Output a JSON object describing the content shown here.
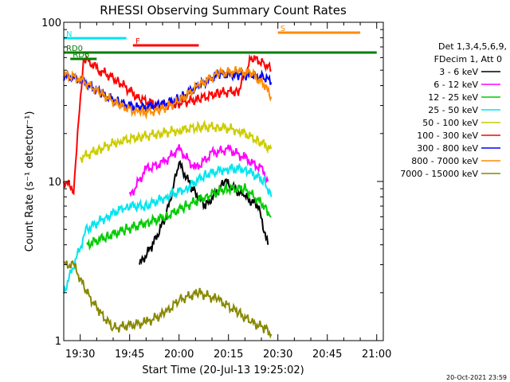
{
  "chart_data": {
    "type": "line",
    "title": "RHESSI Observing Summary Count Rates",
    "xlabel": "Start Time (20-Jul-13 19:25:02)",
    "ylabel": "Count Rate (s⁻¹ detector⁻¹)",
    "yscale": "log",
    "ylim": [
      1,
      100
    ],
    "xlim": [
      "19:25",
      "21:02"
    ],
    "x_ticks": [
      "19:30",
      "19:45",
      "20:00",
      "20:15",
      "20:30",
      "20:45",
      "21:00"
    ],
    "y_ticks": [
      "1",
      "10",
      "100"
    ],
    "legend_header": [
      "Det 1,3,4,5,6,9,",
      "FDecim 1, Att 0"
    ],
    "legend_position": "right",
    "footer_date": "20-Oct-2021 23:59",
    "flags": [
      {
        "label": "N",
        "color": "#00e5ee",
        "start": "19:25",
        "end": "19:44"
      },
      {
        "label": "F",
        "color": "#ff0000",
        "start": "19:46",
        "end": "20:06"
      },
      {
        "label": "S",
        "color": "#ff8c00",
        "start": "20:30",
        "end": "20:55"
      },
      {
        "label": "RD0",
        "color": "#008000",
        "start": "19:25",
        "end": "21:00"
      },
      {
        "label": "RD6",
        "color": "#008000",
        "start": "19:27",
        "end": "19:35"
      }
    ],
    "series": [
      {
        "name": "3 - 6 keV",
        "color": "#000000",
        "x": [
          "19:48",
          "19:52",
          "19:56",
          "20:00",
          "20:04",
          "20:08",
          "20:14",
          "20:20",
          "20:24",
          "20:27"
        ],
        "y": [
          3,
          4,
          6,
          13,
          9,
          7,
          10,
          8,
          7,
          4
        ]
      },
      {
        "name": "6 - 12 keV",
        "color": "#ff00ff",
        "x": [
          "19:45",
          "19:50",
          "19:55",
          "20:00",
          "20:05",
          "20:10",
          "20:15",
          "20:20",
          "20:25",
          "20:27"
        ],
        "y": [
          8,
          12,
          13,
          16,
          12,
          15,
          16,
          14,
          12,
          10
        ]
      },
      {
        "name": "12 - 25 keV",
        "color": "#00cc00",
        "x": [
          "19:32",
          "19:38",
          "19:44",
          "19:50",
          "19:56",
          "20:02",
          "20:08",
          "20:14",
          "20:20",
          "20:26",
          "20:28"
        ],
        "y": [
          4,
          4.5,
          5,
          5.5,
          6,
          7,
          8,
          9,
          9,
          7,
          6
        ]
      },
      {
        "name": "25 - 50 keV",
        "color": "#00e5ee",
        "x": [
          "19:25",
          "19:32",
          "19:38",
          "19:44",
          "19:50",
          "19:56",
          "20:02",
          "20:08",
          "20:14",
          "20:20",
          "20:26",
          "20:28"
        ],
        "y": [
          2,
          5,
          6,
          7,
          7,
          8,
          9,
          11,
          12,
          12,
          10,
          8
        ]
      },
      {
        "name": "50 - 100 keV",
        "color": "#cccc00",
        "x": [
          "19:30",
          "19:36",
          "19:42",
          "19:48",
          "19:54",
          "20:00",
          "20:06",
          "20:12",
          "20:18",
          "20:24",
          "20:28"
        ],
        "y": [
          14,
          16,
          18,
          19,
          20,
          21,
          22,
          22,
          21,
          18,
          16
        ]
      },
      {
        "name": "100 - 300 keV",
        "color": "#ff0000",
        "x": [
          "19:25",
          "19:28",
          "19:31",
          "19:36",
          "19:42",
          "19:48",
          "19:54",
          "20:00",
          "20:06",
          "20:12",
          "20:18",
          "20:22",
          "20:26",
          "20:28"
        ],
        "y": [
          10,
          9,
          60,
          50,
          42,
          33,
          30,
          31,
          33,
          36,
          37,
          60,
          55,
          50
        ]
      },
      {
        "name": "300 - 800 keV",
        "color": "#0000ff",
        "x": [
          "19:25",
          "19:30",
          "19:36",
          "19:42",
          "19:48",
          "19:54",
          "20:00",
          "20:06",
          "20:12",
          "20:18",
          "20:22",
          "20:26",
          "20:28"
        ],
        "y": [
          46,
          44,
          36,
          31,
          29,
          30,
          33,
          40,
          47,
          47,
          46,
          45,
          42
        ]
      },
      {
        "name": "800 - 7000 keV",
        "color": "#ff8c00",
        "x": [
          "19:25",
          "19:30",
          "19:36",
          "19:42",
          "19:48",
          "19:54",
          "20:00",
          "20:06",
          "20:12",
          "20:18",
          "20:22",
          "20:26",
          "20:28"
        ],
        "y": [
          47,
          44,
          36,
          30,
          27,
          28,
          32,
          40,
          48,
          49,
          48,
          40,
          34
        ]
      },
      {
        "name": "7000 - 15000 keV",
        "color": "#888800",
        "x": [
          "19:25",
          "19:28",
          "19:32",
          "19:36",
          "19:40",
          "19:50",
          "19:56",
          "20:00",
          "20:06",
          "20:12",
          "20:18",
          "20:22",
          "20:26",
          "20:28"
        ],
        "y": [
          3,
          3,
          2,
          1.5,
          1.2,
          1.3,
          1.5,
          1.8,
          2.0,
          1.8,
          1.5,
          1.3,
          1.2,
          1.1
        ]
      }
    ]
  }
}
